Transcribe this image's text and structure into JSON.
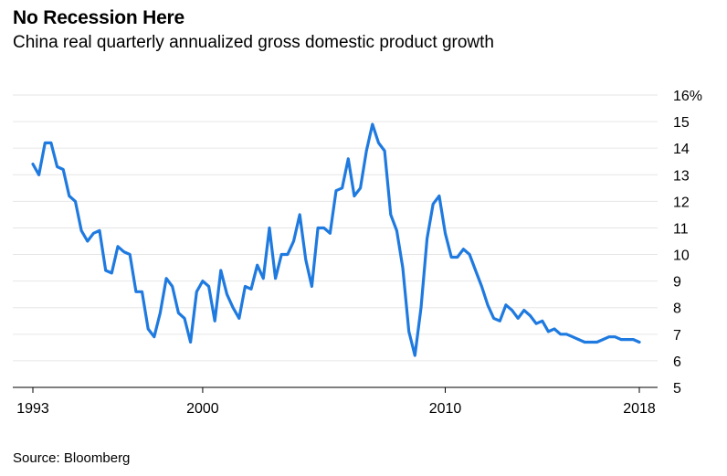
{
  "header": {
    "title": "No Recession Here",
    "subtitle": "China real quarterly annualized gross domestic product growth"
  },
  "footer": {
    "source": "Source: Bloomberg"
  },
  "colors": {
    "line": "#1f7ae0",
    "grid": "#e6e6e6",
    "axis": "#000000"
  },
  "chart_data": {
    "type": "line",
    "title": "No Recession Here",
    "subtitle": "China real quarterly annualized gross domestic product growth",
    "xlabel": "",
    "ylabel": "",
    "xlim": [
      1993,
      2018
    ],
    "ylim": [
      5,
      16
    ],
    "y_ticks": [
      5,
      6,
      7,
      8,
      9,
      10,
      11,
      12,
      13,
      14,
      15,
      16
    ],
    "y_tick_labels": [
      "5",
      "6",
      "7",
      "8",
      "9",
      "10",
      "11",
      "12",
      "13",
      "14",
      "15",
      "16%"
    ],
    "x_ticks": [
      1993,
      2000,
      2010,
      2018
    ],
    "x_tick_labels": [
      "1993",
      "2000",
      "2010",
      "2018"
    ],
    "y_axis_side": "right",
    "grid": true,
    "series": [
      {
        "x": [
          1993.0,
          1993.25,
          1993.5,
          1993.75,
          1994.0,
          1994.25,
          1994.5,
          1994.75,
          1995.0,
          1995.25,
          1995.5,
          1995.75,
          1996.0,
          1996.25,
          1996.5,
          1996.75,
          1997.0,
          1997.25,
          1997.5,
          1997.75,
          1998.0,
          1998.25,
          1998.5,
          1998.75,
          1999.0,
          1999.25,
          1999.5,
          1999.75,
          2000.0,
          2000.25,
          2000.5,
          2000.75,
          2001.0,
          2001.25,
          2001.5,
          2001.75,
          2002.0,
          2002.25,
          2002.5,
          2002.75,
          2003.0,
          2003.25,
          2003.5,
          2003.75,
          2004.0,
          2004.25,
          2004.5,
          2004.75,
          2005.0,
          2005.25,
          2005.5,
          2005.75,
          2006.0,
          2006.25,
          2006.5,
          2006.75,
          2007.0,
          2007.25,
          2007.5,
          2007.75,
          2008.0,
          2008.25,
          2008.5,
          2008.75,
          2009.0,
          2009.25,
          2009.5,
          2009.75,
          2010.0,
          2010.25,
          2010.5,
          2010.75,
          2011.0,
          2011.25,
          2011.5,
          2011.75,
          2012.0,
          2012.25,
          2012.5,
          2012.75,
          2013.0,
          2013.25,
          2013.5,
          2013.75,
          2014.0,
          2014.25,
          2014.5,
          2014.75,
          2015.0,
          2015.25,
          2015.5,
          2015.75,
          2016.0,
          2016.25,
          2016.5,
          2016.75,
          2017.0,
          2017.25,
          2017.5,
          2017.75,
          2018.0
        ],
        "values": [
          13.4,
          13.0,
          14.2,
          14.2,
          13.3,
          13.2,
          12.2,
          12.0,
          10.9,
          10.5,
          10.8,
          10.9,
          9.4,
          9.3,
          10.3,
          10.1,
          10.0,
          8.6,
          8.6,
          7.2,
          6.9,
          7.8,
          9.1,
          8.8,
          7.8,
          7.6,
          6.7,
          8.6,
          9.0,
          8.8,
          7.5,
          9.4,
          8.5,
          8.0,
          7.6,
          8.8,
          8.7,
          9.6,
          9.1,
          11.0,
          9.1,
          10.0,
          10.0,
          10.5,
          11.5,
          9.8,
          8.8,
          11.0,
          11.0,
          10.8,
          12.4,
          12.5,
          13.6,
          12.2,
          12.5,
          13.9,
          14.9,
          14.2,
          13.9,
          11.5,
          10.9,
          9.5,
          7.1,
          6.2,
          8.0,
          10.6,
          11.9,
          12.2,
          10.8,
          9.9,
          9.9,
          10.2,
          10.0,
          9.4,
          8.8,
          8.1,
          7.6,
          7.5,
          8.1,
          7.9,
          7.6,
          7.9,
          7.7,
          7.4,
          7.5,
          7.1,
          7.2,
          7.0,
          7.0,
          6.9,
          6.8,
          6.7,
          6.7,
          6.7,
          6.8,
          6.9,
          6.9,
          6.8,
          6.8,
          6.8,
          6.7
        ]
      }
    ]
  }
}
